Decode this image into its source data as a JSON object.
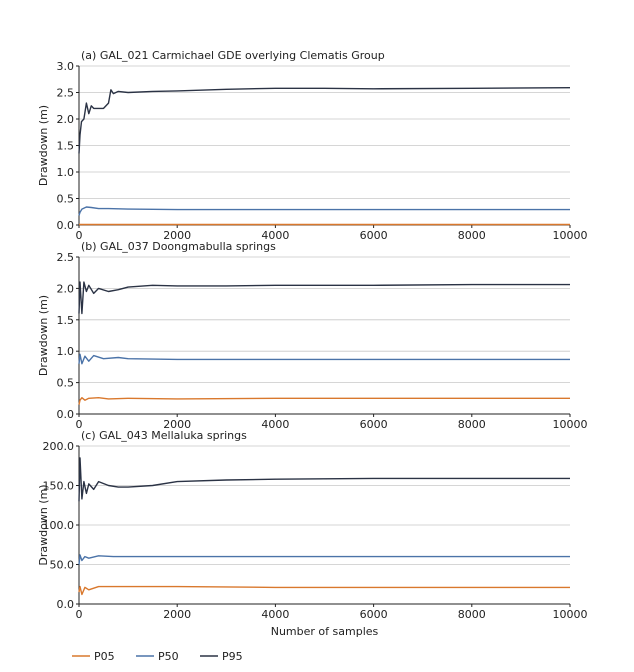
{
  "colors": {
    "P05": "#d9782d",
    "P50": "#4b73a8",
    "P95": "#2b3345",
    "grid": "#c8c8c8",
    "axis": "#222222"
  },
  "chart_data": [
    {
      "type": "line",
      "title": "(a) GAL_021 Carmichael GDE overlying Clematis Group",
      "xlabel": "",
      "ylabel": "Drawdown (m)",
      "xlim": [
        0,
        10000
      ],
      "ylim": [
        0,
        3.0
      ],
      "xticks": [
        0,
        2000,
        4000,
        6000,
        8000,
        10000
      ],
      "xtick_labels": [
        "0",
        "2000",
        "4000",
        "6000",
        "8000",
        "10000"
      ],
      "yticks": [
        0,
        0.5,
        1.0,
        1.5,
        2.0,
        2.5,
        3.0
      ],
      "ytick_labels": [
        "0.0",
        "0.5",
        "1.0",
        "1.5",
        "2.0",
        "2.5",
        "3.0"
      ],
      "grid": "horizontal",
      "series": [
        {
          "name": "P05",
          "x": [
            0,
            20,
            100,
            500,
            1000,
            2000,
            4000,
            6000,
            8000,
            10000
          ],
          "values": [
            0.01,
            0.01,
            0.01,
            0.01,
            0.01,
            0.01,
            0.01,
            0.01,
            0.01,
            0.01
          ]
        },
        {
          "name": "P50",
          "x": [
            0,
            20,
            60,
            150,
            250,
            400,
            600,
            1000,
            2000,
            4000,
            6000,
            8000,
            10000
          ],
          "values": [
            0.18,
            0.24,
            0.3,
            0.34,
            0.33,
            0.31,
            0.31,
            0.3,
            0.29,
            0.29,
            0.29,
            0.29,
            0.29
          ]
        },
        {
          "name": "P95",
          "x": [
            0,
            20,
            50,
            100,
            150,
            200,
            250,
            300,
            400,
            500,
            600,
            650,
            700,
            800,
            1000,
            1500,
            2000,
            3000,
            4000,
            5000,
            6000,
            8000,
            10000
          ],
          "values": [
            1.35,
            1.7,
            1.95,
            2.0,
            2.3,
            2.1,
            2.25,
            2.2,
            2.2,
            2.2,
            2.3,
            2.55,
            2.48,
            2.52,
            2.5,
            2.52,
            2.53,
            2.56,
            2.58,
            2.58,
            2.57,
            2.58,
            2.59
          ]
        }
      ]
    },
    {
      "type": "line",
      "title": "(b) GAL_037 Doongmabulla springs",
      "xlabel": "",
      "ylabel": "Drawdown (m)",
      "xlim": [
        0,
        10000
      ],
      "ylim": [
        0,
        2.5
      ],
      "xticks": [
        0,
        2000,
        4000,
        6000,
        8000,
        10000
      ],
      "xtick_labels": [
        "0",
        "2000",
        "4000",
        "6000",
        "8000",
        "10000"
      ],
      "yticks": [
        0,
        0.5,
        1.0,
        1.5,
        2.0,
        2.5
      ],
      "ytick_labels": [
        "0.0",
        "0.5",
        "1.0",
        "1.5",
        "2.0",
        "2.5"
      ],
      "grid": "horizontal",
      "series": [
        {
          "name": "P05",
          "x": [
            0,
            20,
            60,
            120,
            200,
            400,
            600,
            1000,
            2000,
            4000,
            6000,
            8000,
            10000
          ],
          "values": [
            0.15,
            0.22,
            0.26,
            0.22,
            0.25,
            0.26,
            0.24,
            0.25,
            0.24,
            0.25,
            0.25,
            0.25,
            0.25
          ]
        },
        {
          "name": "P50",
          "x": [
            0,
            20,
            60,
            120,
            200,
            300,
            500,
            800,
            1000,
            2000,
            4000,
            6000,
            8000,
            10000
          ],
          "values": [
            0.8,
            0.95,
            0.8,
            0.92,
            0.84,
            0.93,
            0.88,
            0.9,
            0.88,
            0.87,
            0.87,
            0.87,
            0.87,
            0.87
          ]
        },
        {
          "name": "P95",
          "x": [
            0,
            20,
            60,
            100,
            150,
            200,
            300,
            400,
            600,
            800,
            1000,
            1500,
            2000,
            3000,
            4000,
            6000,
            8000,
            10000
          ],
          "values": [
            1.6,
            2.1,
            1.6,
            2.1,
            1.95,
            2.05,
            1.92,
            2.0,
            1.95,
            1.98,
            2.02,
            2.05,
            2.04,
            2.04,
            2.05,
            2.05,
            2.06,
            2.06
          ]
        }
      ]
    },
    {
      "type": "line",
      "title": "(c) GAL_043 Mellaluka springs",
      "xlabel": "Number of samples",
      "ylabel": "Drawdown (m)",
      "xlim": [
        0,
        10000
      ],
      "ylim": [
        0,
        200
      ],
      "xticks": [
        0,
        2000,
        4000,
        6000,
        8000,
        10000
      ],
      "xtick_labels": [
        "0",
        "2000",
        "4000",
        "6000",
        "8000",
        "10000"
      ],
      "yticks": [
        0,
        50,
        100,
        150,
        200
      ],
      "ytick_labels": [
        "0.0",
        "50.0",
        "100.0",
        "150.0",
        "200.0"
      ],
      "grid": "horizontal",
      "series": [
        {
          "name": "P05",
          "x": [
            0,
            20,
            60,
            120,
            200,
            400,
            700,
            1000,
            2000,
            4000,
            6000,
            8000,
            10000
          ],
          "values": [
            15,
            22,
            12,
            21,
            18,
            22,
            22,
            22,
            22,
            21,
            21,
            21,
            21
          ]
        },
        {
          "name": "P50",
          "x": [
            0,
            20,
            60,
            120,
            200,
            400,
            700,
            1000,
            2000,
            4000,
            6000,
            8000,
            10000
          ],
          "values": [
            50,
            62,
            55,
            60,
            58,
            61,
            60,
            60,
            60,
            60,
            60,
            60,
            60
          ]
        },
        {
          "name": "P95",
          "x": [
            0,
            20,
            60,
            100,
            150,
            200,
            300,
            400,
            600,
            800,
            1000,
            1500,
            2000,
            3000,
            4000,
            6000,
            8000,
            10000
          ],
          "values": [
            130,
            185,
            133,
            155,
            140,
            152,
            145,
            155,
            150,
            148,
            148,
            150,
            155,
            157,
            158,
            159,
            159,
            159
          ]
        }
      ]
    }
  ],
  "legend": [
    {
      "name": "P05",
      "label": "P05"
    },
    {
      "name": "P50",
      "label": "P50"
    },
    {
      "name": "P95",
      "label": "P95"
    }
  ]
}
